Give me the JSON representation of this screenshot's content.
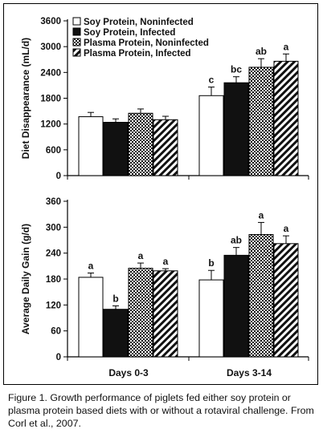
{
  "caption": "Figure 1. Growth performance of piglets fed either soy protein or plasma protein based diets with or without a rotaviral challenge. From Corl et al., 2007.",
  "legend": [
    "Soy Protein, Noninfected",
    "Soy Protein, Infected",
    "Plasma Protein, Noninfected",
    "Plasma Protein, Infected"
  ],
  "chart_data": [
    {
      "type": "bar",
      "categories": [
        "Days 0-3",
        "Days 3-14"
      ],
      "ylabel": "Diet Disappearance (mL/d)",
      "ylim": [
        0,
        3600
      ],
      "yticks": [
        "0",
        "600",
        "1200",
        "1800",
        "2400",
        "3000",
        "3600"
      ],
      "legend_position": "top-left",
      "series": [
        {
          "name": "Soy Protein, Noninfected",
          "values": [
            1370,
            1860
          ],
          "errors": [
            100,
            200
          ],
          "labels": [
            "",
            "c"
          ]
        },
        {
          "name": "Soy Protein, Infected",
          "values": [
            1240,
            2160
          ],
          "errors": [
            80,
            140
          ],
          "labels": [
            "",
            "bc"
          ]
        },
        {
          "name": "Plasma Protein, Noninfected",
          "values": [
            1450,
            2520
          ],
          "errors": [
            100,
            200
          ],
          "labels": [
            "",
            "ab"
          ]
        },
        {
          "name": "Plasma Protein, Infected",
          "values": [
            1300,
            2660
          ],
          "errors": [
            80,
            170
          ],
          "labels": [
            "",
            "a"
          ]
        }
      ]
    },
    {
      "type": "bar",
      "categories": [
        "Days 0-3",
        "Days 3-14"
      ],
      "ylabel": "Average Daily Gain (g/d)",
      "ylim": [
        0,
        360
      ],
      "yticks": [
        "0",
        "60",
        "120",
        "180",
        "240",
        "300",
        "360"
      ],
      "series": [
        {
          "name": "Soy Protein, Noninfected",
          "values": [
            184,
            178
          ],
          "errors": [
            10,
            22
          ],
          "labels": [
            "a",
            "b"
          ]
        },
        {
          "name": "Soy Protein, Infected",
          "values": [
            110,
            235
          ],
          "errors": [
            8,
            18
          ],
          "labels": [
            "b",
            "ab"
          ]
        },
        {
          "name": "Plasma Protein, Noninfected",
          "values": [
            205,
            283
          ],
          "errors": [
            12,
            28
          ],
          "labels": [
            "a",
            "a"
          ]
        },
        {
          "name": "Plasma Protein, Infected",
          "values": [
            199,
            262
          ],
          "errors": [
            5,
            18
          ],
          "labels": [
            "a",
            "a"
          ]
        }
      ]
    }
  ]
}
